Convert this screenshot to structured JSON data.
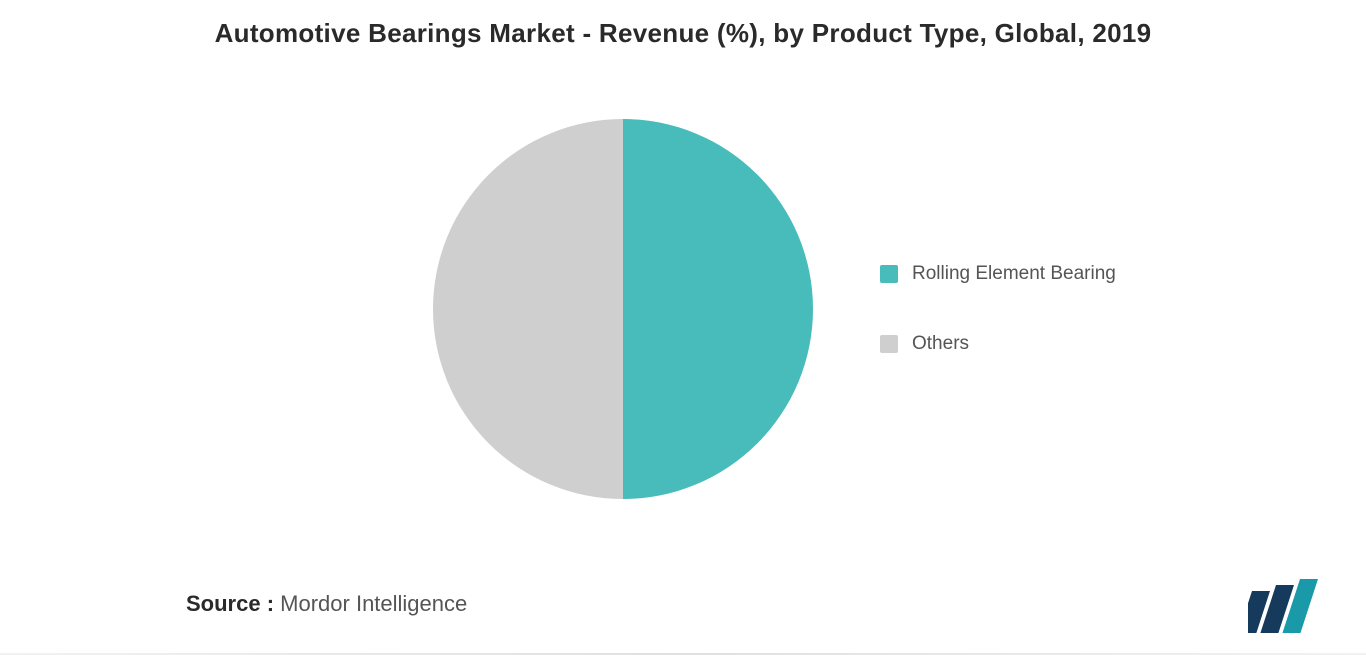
{
  "chart": {
    "type": "pie",
    "title": "Automotive Bearings Market - Revenue (%), by Product Type, Global, 2019",
    "title_fontsize": 26,
    "title_color": "#2a2a2a",
    "background_color": "#ffffff",
    "pie_radius": 190,
    "slices": [
      {
        "label": "Rolling Element Bearing",
        "value": 50,
        "color": "#48bbbb"
      },
      {
        "label": "Others",
        "value": 50,
        "color": "#cfcfcf"
      }
    ],
    "legend": {
      "position": "right",
      "items": [
        {
          "label": "Rolling Element Bearing",
          "color": "#48bbbb"
        },
        {
          "label": "Others",
          "color": "#cfcfcf"
        }
      ],
      "fontsize": 19,
      "text_color": "#555555",
      "swatch_size": 18
    }
  },
  "source": {
    "label": "Source :",
    "value": "Mordor Intelligence",
    "fontsize": 22,
    "label_weight": 700,
    "value_weight": 300
  },
  "logo": {
    "name": "mordor-intelligence-logo",
    "bars": [
      "#153a5b",
      "#153a5b",
      "#1a9aa8"
    ]
  }
}
